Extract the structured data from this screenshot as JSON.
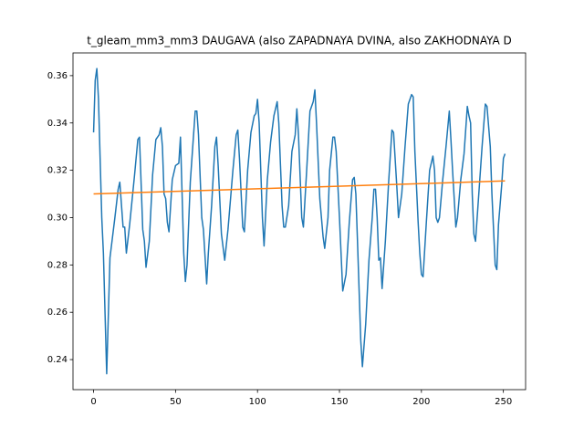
{
  "chart_data": {
    "type": "line",
    "title": "t_gleam_mm3_mm3 DAUGAVA (also ZAPADNAYA DVINA, also ZAKHODNAYA D",
    "xlim": [
      -12.55,
      263.55
    ],
    "xticks": [
      0,
      50,
      100,
      150,
      200,
      250
    ],
    "ylim": [
      0.2273,
      0.3696
    ],
    "yticks": [
      0.24,
      0.26,
      0.28,
      {
        "value": 0.3,
        "label": "0.30"
      },
      0.32,
      0.34,
      0.36
    ],
    "series": [
      {
        "color": "#1f77b4",
        "x": [
          0,
          1,
          2,
          3,
          5,
          6,
          8,
          10,
          13,
          15,
          16,
          18,
          19,
          20,
          22,
          25,
          27,
          28,
          30,
          31,
          32,
          34,
          36,
          38,
          40,
          41,
          42,
          43,
          44,
          45,
          46,
          48,
          50,
          52,
          53,
          54,
          55,
          56,
          57,
          59,
          60,
          62,
          63,
          64,
          66,
          67,
          69,
          70,
          72,
          74,
          75,
          76,
          78,
          80,
          82,
          85,
          87,
          88,
          89,
          91,
          92,
          94,
          96,
          98,
          99,
          100,
          101,
          103,
          104,
          106,
          108,
          110,
          112,
          113,
          115,
          116,
          117,
          119,
          121,
          123,
          124,
          125,
          127,
          128,
          130,
          132,
          134,
          135,
          136,
          138,
          140,
          141,
          143,
          144,
          146,
          147,
          148,
          150,
          152,
          154,
          156,
          158,
          159,
          160,
          161,
          163,
          164,
          166,
          168,
          170,
          171,
          172,
          173,
          174,
          175,
          176,
          178,
          180,
          182,
          183,
          185,
          186,
          188,
          190,
          192,
          194,
          195,
          196,
          198,
          199,
          200,
          201,
          203,
          205,
          207,
          208,
          209,
          210,
          211,
          213,
          215,
          217,
          218,
          219,
          221,
          222,
          224,
          226,
          228,
          229,
          230,
          231,
          232,
          233,
          235,
          237,
          239,
          240,
          242,
          243,
          245,
          246,
          247,
          249,
          250,
          251
        ],
        "values": [
          0.336,
          0.358,
          0.363,
          0.35,
          0.3,
          0.285,
          0.234,
          0.283,
          0.3,
          0.312,
          0.315,
          0.296,
          0.296,
          0.285,
          0.297,
          0.318,
          0.333,
          0.334,
          0.295,
          0.29,
          0.279,
          0.29,
          0.318,
          0.333,
          0.335,
          0.338,
          0.33,
          0.31,
          0.308,
          0.298,
          0.294,
          0.316,
          0.322,
          0.323,
          0.334,
          0.31,
          0.285,
          0.273,
          0.28,
          0.315,
          0.325,
          0.345,
          0.345,
          0.335,
          0.3,
          0.295,
          0.272,
          0.285,
          0.305,
          0.33,
          0.334,
          0.322,
          0.293,
          0.282,
          0.295,
          0.32,
          0.335,
          0.337,
          0.325,
          0.296,
          0.294,
          0.32,
          0.336,
          0.343,
          0.344,
          0.35,
          0.34,
          0.3,
          0.288,
          0.316,
          0.332,
          0.343,
          0.349,
          0.34,
          0.305,
          0.296,
          0.296,
          0.305,
          0.328,
          0.335,
          0.346,
          0.335,
          0.3,
          0.296,
          0.32,
          0.345,
          0.349,
          0.354,
          0.34,
          0.308,
          0.292,
          0.287,
          0.3,
          0.32,
          0.334,
          0.334,
          0.328,
          0.3,
          0.269,
          0.276,
          0.298,
          0.316,
          0.317,
          0.31,
          0.29,
          0.248,
          0.237,
          0.255,
          0.282,
          0.3,
          0.312,
          0.312,
          0.3,
          0.282,
          0.283,
          0.27,
          0.29,
          0.315,
          0.337,
          0.336,
          0.313,
          0.3,
          0.31,
          0.33,
          0.348,
          0.352,
          0.351,
          0.328,
          0.298,
          0.285,
          0.276,
          0.275,
          0.298,
          0.32,
          0.326,
          0.32,
          0.3,
          0.298,
          0.3,
          0.316,
          0.33,
          0.345,
          0.333,
          0.32,
          0.296,
          0.3,
          0.316,
          0.327,
          0.347,
          0.343,
          0.34,
          0.31,
          0.293,
          0.29,
          0.31,
          0.33,
          0.348,
          0.347,
          0.33,
          0.31,
          0.28,
          0.278,
          0.297,
          0.314,
          0.325,
          0.327
        ]
      },
      {
        "color": "#ff7f0e",
        "x": [
          0,
          251
        ],
        "values": [
          0.31,
          0.3155
        ]
      }
    ]
  }
}
